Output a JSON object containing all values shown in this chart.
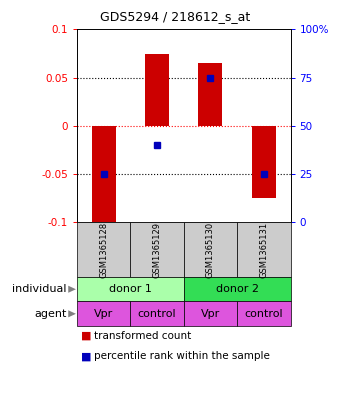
{
  "title": "GDS5294 / 218612_s_at",
  "samples": [
    "GSM1365128",
    "GSM1365129",
    "GSM1365130",
    "GSM1365131"
  ],
  "bar_values": [
    -0.103,
    0.075,
    0.065,
    -0.075
  ],
  "percentile_ranks": [
    25,
    40,
    75,
    25
  ],
  "ylim_left": [
    -0.1,
    0.1
  ],
  "ylim_right": [
    0,
    100
  ],
  "yticks_left": [
    -0.1,
    -0.05,
    0.0,
    0.05,
    0.1
  ],
  "ytick_labels_left": [
    "-0.1",
    "-0.05",
    "0",
    "0.05",
    "0.1"
  ],
  "yticks_right": [
    0,
    25,
    50,
    75,
    100
  ],
  "ytick_labels_right": [
    "0",
    "25",
    "50",
    "75",
    "100%"
  ],
  "bar_color": "#cc0000",
  "dot_color": "#0000bb",
  "bar_width": 0.45,
  "individual_labels": [
    "donor 1",
    "donor 2"
  ],
  "individual_colors": [
    "#aaffaa",
    "#33dd55"
  ],
  "agent_labels": [
    "Vpr",
    "control",
    "Vpr",
    "control"
  ],
  "agent_color": "#dd55dd",
  "sample_bg_color": "#cccccc",
  "legend_label_bar": "transformed count",
  "legend_label_dot": "percentile rank within the sample"
}
